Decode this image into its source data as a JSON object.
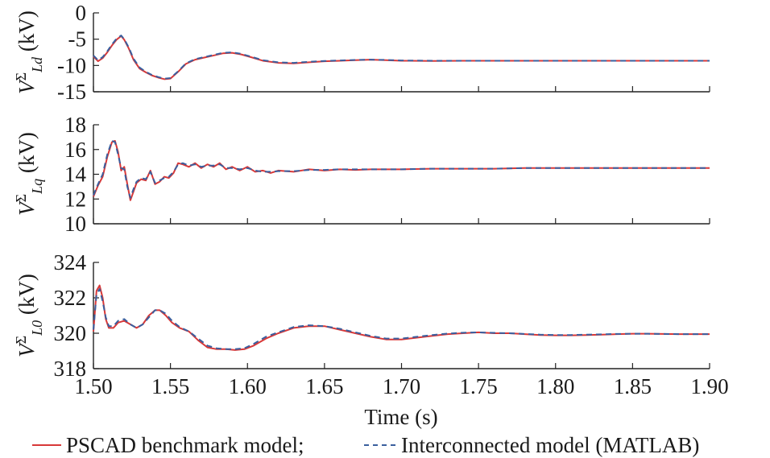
{
  "chart_data": [
    {
      "type": "line",
      "ylabel": "V_Ld^Σ (kV)",
      "ylabel_parts": {
        "base": "V",
        "sup": "Σ",
        "sub": "Ld",
        "unit": " (kV)"
      },
      "xlim": [
        1.5,
        1.9
      ],
      "ylim": [
        -15,
        0
      ],
      "yticks": [
        "0",
        "-5",
        "-10",
        "-15"
      ],
      "ytick_values": [
        0,
        -5,
        -10,
        -15
      ],
      "series": [
        {
          "name": "PSCAD benchmark model",
          "color": "#d83838",
          "style": "solid",
          "x": [
            1.5,
            1.503,
            1.506,
            1.509,
            1.512,
            1.515,
            1.518,
            1.52,
            1.523,
            1.526,
            1.53,
            1.534,
            1.538,
            1.542,
            1.546,
            1.55,
            1.555,
            1.56,
            1.566,
            1.572,
            1.578,
            1.584,
            1.59,
            1.596,
            1.602,
            1.61,
            1.62,
            1.63,
            1.64,
            1.65,
            1.66,
            1.67,
            1.68,
            1.69,
            1.7,
            1.72,
            1.74,
            1.76,
            1.78,
            1.8,
            1.82,
            1.84,
            1.86,
            1.88,
            1.9
          ],
          "y": [
            -8.3,
            -9.2,
            -8.6,
            -7.5,
            -6.2,
            -5.1,
            -4.4,
            -5.1,
            -6.8,
            -8.9,
            -10.6,
            -11.3,
            -11.9,
            -12.3,
            -12.6,
            -12.5,
            -11.2,
            -9.7,
            -8.9,
            -8.5,
            -8.1,
            -7.7,
            -7.6,
            -7.9,
            -8.4,
            -9.1,
            -9.5,
            -9.6,
            -9.4,
            -9.2,
            -9.1,
            -9.0,
            -8.9,
            -9.0,
            -9.1,
            -9.15,
            -9.1,
            -9.1,
            -9.1,
            -9.1,
            -9.1,
            -9.1,
            -9.1,
            -9.1,
            -9.1
          ]
        },
        {
          "name": "Interconnected model (MATLAB)",
          "color": "#3a5f9e",
          "style": "dashed",
          "x": [
            1.5,
            1.503,
            1.506,
            1.509,
            1.512,
            1.515,
            1.518,
            1.52,
            1.523,
            1.526,
            1.53,
            1.534,
            1.538,
            1.542,
            1.546,
            1.55,
            1.555,
            1.56,
            1.566,
            1.572,
            1.578,
            1.584,
            1.59,
            1.596,
            1.602,
            1.61,
            1.62,
            1.63,
            1.64,
            1.65,
            1.66,
            1.67,
            1.68,
            1.69,
            1.7,
            1.72,
            1.74,
            1.76,
            1.78,
            1.8,
            1.82,
            1.84,
            1.86,
            1.88,
            1.9
          ],
          "y": [
            -8.1,
            -9.0,
            -8.4,
            -7.3,
            -6.0,
            -4.9,
            -4.3,
            -5.0,
            -6.6,
            -8.7,
            -10.4,
            -11.2,
            -11.8,
            -12.2,
            -12.5,
            -12.4,
            -11.1,
            -9.6,
            -8.8,
            -8.4,
            -8.0,
            -7.6,
            -7.5,
            -7.8,
            -8.3,
            -9.0,
            -9.4,
            -9.5,
            -9.3,
            -9.15,
            -9.05,
            -8.95,
            -8.9,
            -8.95,
            -9.05,
            -9.1,
            -9.1,
            -9.1,
            -9.1,
            -9.1,
            -9.1,
            -9.1,
            -9.1,
            -9.1,
            -9.1
          ]
        }
      ]
    },
    {
      "type": "line",
      "ylabel": "V_Lq^Σ (kV)",
      "ylabel_parts": {
        "base": "V",
        "sup": "Σ",
        "sub": "Lq",
        "unit": " (kV)"
      },
      "xlim": [
        1.5,
        1.9
      ],
      "ylim": [
        10,
        18
      ],
      "yticks": [
        "18",
        "16",
        "14",
        "12",
        "10"
      ],
      "ytick_values": [
        18,
        16,
        14,
        12,
        10
      ],
      "series": [
        {
          "name": "PSCAD benchmark model",
          "color": "#d83838",
          "style": "solid",
          "x": [
            1.5,
            1.503,
            1.506,
            1.509,
            1.512,
            1.514,
            1.516,
            1.518,
            1.52,
            1.522,
            1.524,
            1.526,
            1.528,
            1.531,
            1.534,
            1.537,
            1.54,
            1.543,
            1.546,
            1.549,
            1.552,
            1.555,
            1.558,
            1.562,
            1.566,
            1.57,
            1.574,
            1.578,
            1.582,
            1.586,
            1.59,
            1.595,
            1.6,
            1.605,
            1.61,
            1.615,
            1.62,
            1.63,
            1.64,
            1.65,
            1.66,
            1.67,
            1.68,
            1.7,
            1.72,
            1.74,
            1.76,
            1.78,
            1.8,
            1.82,
            1.84,
            1.86,
            1.88,
            1.9
          ],
          "y": [
            12.2,
            13.1,
            13.8,
            15.4,
            16.6,
            16.7,
            15.8,
            14.3,
            14.6,
            13.2,
            11.9,
            12.6,
            13.3,
            13.6,
            13.5,
            14.3,
            13.2,
            13.4,
            13.8,
            13.7,
            14.1,
            14.9,
            14.8,
            14.6,
            14.9,
            14.5,
            14.8,
            14.6,
            14.9,
            14.4,
            14.6,
            14.3,
            14.6,
            14.2,
            14.3,
            14.1,
            14.3,
            14.2,
            14.4,
            14.3,
            14.4,
            14.35,
            14.4,
            14.4,
            14.45,
            14.45,
            14.45,
            14.5,
            14.5,
            14.5,
            14.5,
            14.5,
            14.5,
            14.5
          ]
        },
        {
          "name": "Interconnected model (MATLAB)",
          "color": "#3a5f9e",
          "style": "dashed",
          "x": [
            1.5,
            1.503,
            1.506,
            1.509,
            1.512,
            1.514,
            1.516,
            1.518,
            1.52,
            1.522,
            1.524,
            1.526,
            1.528,
            1.531,
            1.534,
            1.537,
            1.54,
            1.543,
            1.546,
            1.549,
            1.552,
            1.555,
            1.558,
            1.562,
            1.566,
            1.57,
            1.574,
            1.578,
            1.582,
            1.586,
            1.59,
            1.595,
            1.6,
            1.605,
            1.61,
            1.615,
            1.62,
            1.63,
            1.64,
            1.65,
            1.66,
            1.67,
            1.68,
            1.7,
            1.72,
            1.74,
            1.76,
            1.78,
            1.8,
            1.82,
            1.84,
            1.86,
            1.88,
            1.9
          ],
          "y": [
            12.3,
            13.2,
            14.0,
            15.6,
            16.7,
            16.6,
            15.6,
            14.5,
            14.4,
            13.0,
            12.1,
            12.8,
            13.4,
            13.7,
            13.6,
            14.2,
            13.3,
            13.5,
            13.7,
            13.8,
            14.2,
            14.8,
            14.9,
            14.7,
            14.8,
            14.6,
            14.7,
            14.7,
            14.8,
            14.5,
            14.5,
            14.4,
            14.5,
            14.3,
            14.2,
            14.2,
            14.25,
            14.25,
            14.35,
            14.35,
            14.4,
            14.4,
            14.4,
            14.4,
            14.45,
            14.45,
            14.45,
            14.5,
            14.5,
            14.5,
            14.5,
            14.5,
            14.5,
            14.5
          ]
        }
      ]
    },
    {
      "type": "line",
      "ylabel": "V_L0^Σ (kV)",
      "ylabel_parts": {
        "base": "V",
        "sup": "Σ",
        "sub": "L0",
        "unit": " (kV)"
      },
      "xlabel": "Time (s)",
      "xlim": [
        1.5,
        1.9
      ],
      "xticks": [
        "1.50",
        "1.55",
        "1.60",
        "1.65",
        "1.70",
        "1.75",
        "1.80",
        "1.85",
        "1.90"
      ],
      "xtick_values": [
        1.5,
        1.55,
        1.6,
        1.65,
        1.7,
        1.75,
        1.8,
        1.85,
        1.9
      ],
      "ylim": [
        318,
        324
      ],
      "yticks": [
        "324",
        "322",
        "320",
        "318"
      ],
      "ytick_values": [
        324,
        322,
        320,
        318
      ],
      "series": [
        {
          "name": "PSCAD benchmark model",
          "color": "#d83838",
          "style": "solid",
          "x": [
            1.5,
            1.502,
            1.504,
            1.506,
            1.508,
            1.51,
            1.513,
            1.516,
            1.52,
            1.524,
            1.528,
            1.532,
            1.536,
            1.54,
            1.543,
            1.547,
            1.551,
            1.556,
            1.562,
            1.568,
            1.574,
            1.58,
            1.586,
            1.592,
            1.598,
            1.604,
            1.612,
            1.62,
            1.63,
            1.64,
            1.65,
            1.66,
            1.67,
            1.68,
            1.69,
            1.7,
            1.71,
            1.72,
            1.73,
            1.74,
            1.75,
            1.76,
            1.77,
            1.78,
            1.79,
            1.8,
            1.81,
            1.82,
            1.83,
            1.84,
            1.85,
            1.86,
            1.87,
            1.88,
            1.89,
            1.9
          ],
          "y": [
            320.1,
            322.4,
            322.7,
            322.0,
            320.8,
            320.3,
            320.3,
            320.6,
            320.7,
            320.5,
            320.3,
            320.5,
            321.0,
            321.3,
            321.3,
            321.0,
            320.6,
            320.3,
            320.1,
            319.6,
            319.2,
            319.1,
            319.1,
            319.05,
            319.1,
            319.3,
            319.7,
            320.0,
            320.3,
            320.4,
            320.4,
            320.2,
            320.0,
            319.8,
            319.65,
            319.65,
            319.75,
            319.85,
            319.95,
            320.0,
            320.05,
            320.0,
            320.0,
            319.95,
            319.9,
            319.88,
            319.88,
            319.9,
            319.92,
            319.95,
            319.97,
            319.97,
            319.96,
            319.95,
            319.95,
            319.95
          ]
        },
        {
          "name": "Interconnected model (MATLAB)",
          "color": "#3a5f9e",
          "style": "dashed",
          "x": [
            1.5,
            1.502,
            1.504,
            1.506,
            1.508,
            1.51,
            1.513,
            1.516,
            1.52,
            1.524,
            1.528,
            1.532,
            1.536,
            1.54,
            1.543,
            1.547,
            1.551,
            1.556,
            1.562,
            1.568,
            1.574,
            1.58,
            1.586,
            1.592,
            1.598,
            1.604,
            1.612,
            1.62,
            1.63,
            1.64,
            1.65,
            1.66,
            1.67,
            1.68,
            1.69,
            1.7,
            1.71,
            1.72,
            1.73,
            1.74,
            1.75,
            1.76,
            1.77,
            1.78,
            1.79,
            1.8,
            1.81,
            1.82,
            1.83,
            1.84,
            1.85,
            1.86,
            1.87,
            1.88,
            1.89,
            1.9
          ],
          "y": [
            320.2,
            322.2,
            322.5,
            321.8,
            320.9,
            320.4,
            320.4,
            320.7,
            320.8,
            320.5,
            320.3,
            320.5,
            320.9,
            321.3,
            321.3,
            321.1,
            320.7,
            320.35,
            320.1,
            319.7,
            319.3,
            319.15,
            319.1,
            319.1,
            319.15,
            319.4,
            319.8,
            320.05,
            320.35,
            320.45,
            320.4,
            320.25,
            320.05,
            319.85,
            319.7,
            319.7,
            319.8,
            319.9,
            319.98,
            320.03,
            320.05,
            320.02,
            320.0,
            319.96,
            319.92,
            319.9,
            319.9,
            319.92,
            319.94,
            319.96,
            319.97,
            319.97,
            319.96,
            319.95,
            319.95,
            319.95
          ]
        }
      ]
    }
  ],
  "legend": {
    "placement": "bottom-center",
    "entries": [
      {
        "label": "PSCAD benchmark model;",
        "color": "#d83838",
        "style": "solid"
      },
      {
        "label": "Interconnected model (MATLAB)",
        "color": "#3a5f9e",
        "style": "dashed"
      }
    ]
  }
}
